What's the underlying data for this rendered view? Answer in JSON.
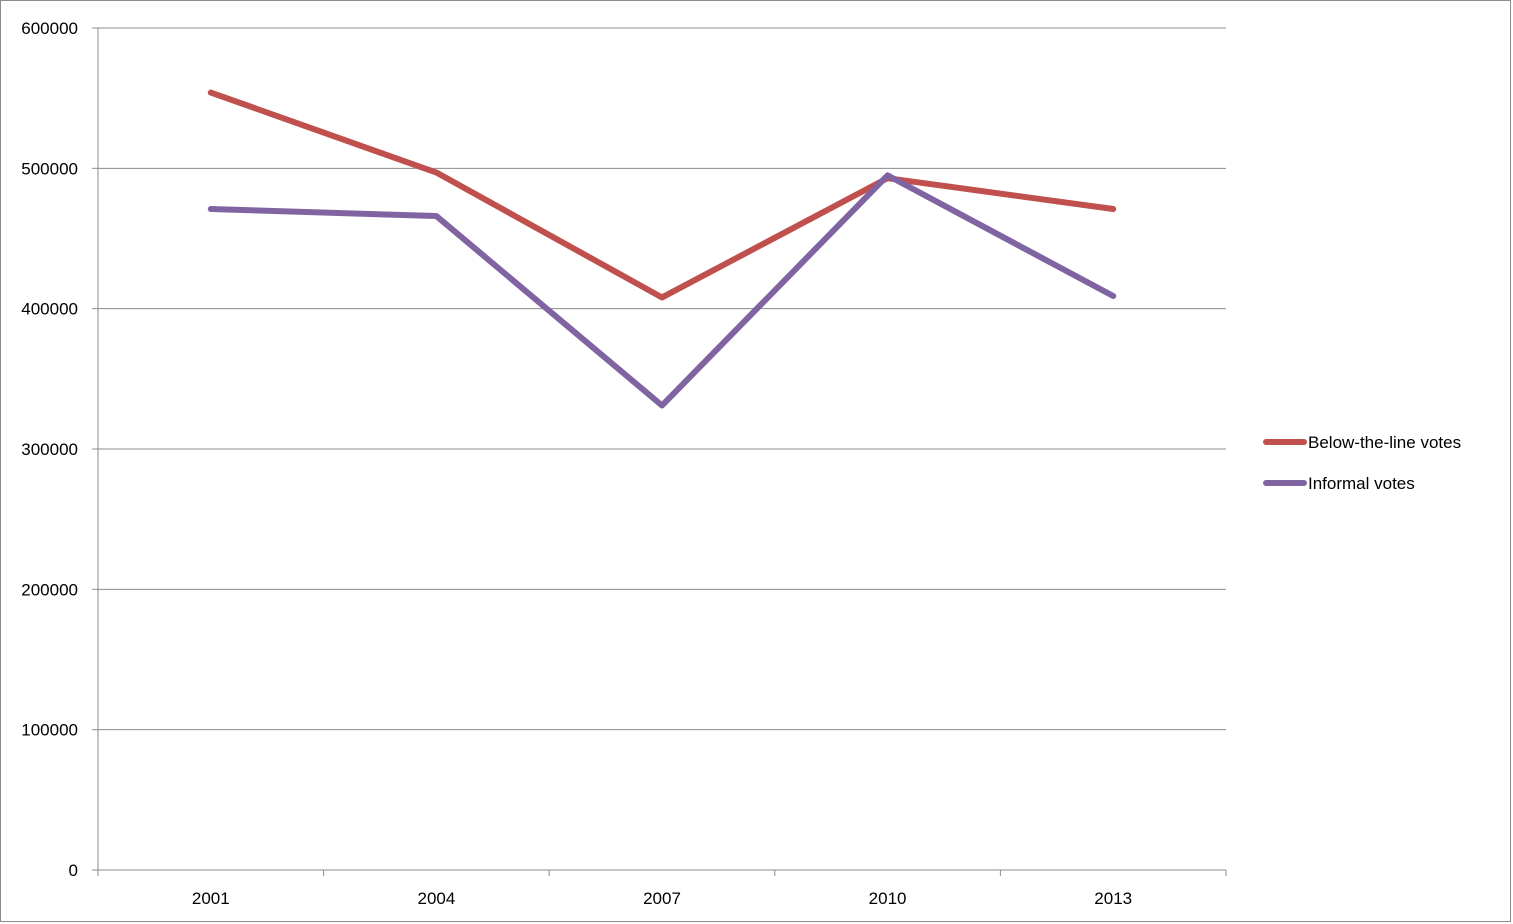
{
  "chart_data": {
    "type": "line",
    "categories": [
      "2001",
      "2004",
      "2007",
      "2010",
      "2013"
    ],
    "ylim": [
      0,
      600000
    ],
    "yticks": [
      "0",
      "100000",
      "200000",
      "300000",
      "400000",
      "500000",
      "600000"
    ],
    "grid": true,
    "legend_position": "right",
    "series": [
      {
        "name": "Below-the-line votes",
        "color": "#c0504d",
        "values": [
          554000,
          497000,
          408000,
          493000,
          471000
        ]
      },
      {
        "name": "Informal votes",
        "color": "#8064a2",
        "values": [
          471000,
          466000,
          331000,
          495000,
          409000
        ]
      }
    ]
  }
}
